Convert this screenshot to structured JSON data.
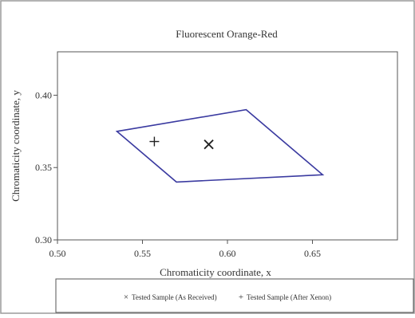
{
  "chart_data": {
    "type": "scatter",
    "title": "Fluorescent Orange-Red",
    "xlabel": "Chromaticity coordinate, x",
    "ylabel": "Chromaticity coordinate, y",
    "xlim": [
      0.5,
      0.7
    ],
    "ylim": [
      0.3,
      0.43
    ],
    "xticks": [
      "0.50",
      "0.55",
      "0.60",
      "0.65"
    ],
    "yticks": [
      "0.30",
      "0.35",
      "0.40"
    ],
    "grid": false,
    "legend_position": "bottom",
    "boundary": {
      "color": "#3a3aa0",
      "points": [
        {
          "x": 0.535,
          "y": 0.375
        },
        {
          "x": 0.611,
          "y": 0.39
        },
        {
          "x": 0.656,
          "y": 0.345
        },
        {
          "x": 0.57,
          "y": 0.34
        }
      ]
    },
    "series": [
      {
        "name": "Tested Sample (As Received)",
        "marker": "x",
        "x": [
          0.589
        ],
        "y": [
          0.366
        ]
      },
      {
        "name": "Tested Sample (After Xenon)",
        "marker": "+",
        "x": [
          0.557
        ],
        "y": [
          0.368
        ]
      }
    ]
  },
  "legend": {
    "as_received": "Tested Sample (As Received)",
    "after_xenon": "Tested Sample (After Xenon)"
  }
}
